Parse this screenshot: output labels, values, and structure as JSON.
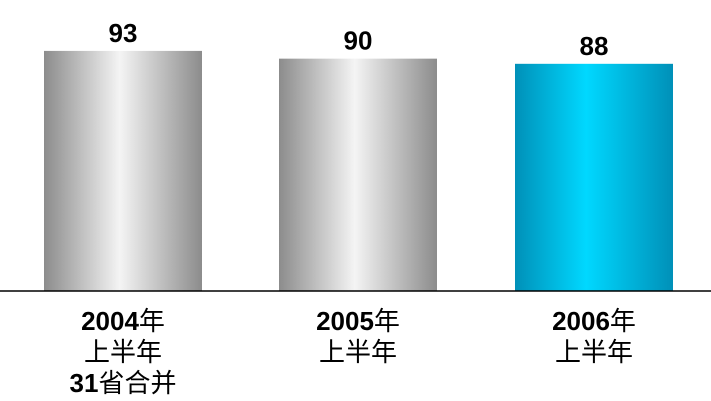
{
  "chart_data": {
    "type": "bar",
    "categories": [
      [
        "2004年",
        "上半年",
        "31省合并"
      ],
      [
        "2005年",
        "上半年"
      ],
      [
        "2006年",
        "上半年"
      ]
    ],
    "values": [
      93,
      90,
      88
    ],
    "value_labels": [
      "93",
      "90",
      "88"
    ],
    "title": "",
    "xlabel": "",
    "ylabel": "",
    "ylim": [
      0,
      98
    ],
    "grid": false,
    "bar_styles": [
      "silver-gradient",
      "silver-gradient",
      "cyan-gradient"
    ],
    "colors": {
      "silver_light": "#f4f4f4",
      "silver_dark": "#8c8c8c",
      "cyan_light": "#00d8ff",
      "cyan_dark": "#0090b8",
      "axis": "#000000",
      "text": "#000000"
    }
  }
}
